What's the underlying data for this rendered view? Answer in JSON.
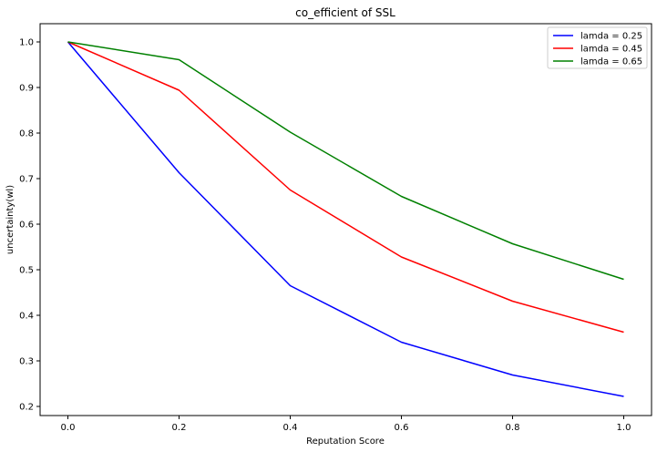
{
  "chart_data": {
    "type": "line",
    "title": "co_efficient of SSL",
    "xlabel": "Reputation Score",
    "ylabel": "uncertainty(wl)",
    "x": [
      0.0,
      0.2,
      0.4,
      0.6,
      0.8,
      1.0
    ],
    "xlim": [
      -0.05,
      1.05
    ],
    "ylim": [
      0.18,
      1.04
    ],
    "xticks": [
      "0.0",
      "0.2",
      "0.4",
      "0.6",
      "0.8",
      "1.0"
    ],
    "yticks": [
      "0.2",
      "0.3",
      "0.4",
      "0.5",
      "0.6",
      "0.7",
      "0.8",
      "0.9",
      "1.0"
    ],
    "grid": false,
    "legend_position": "top-right",
    "series": [
      {
        "name": "lamda = 0.25",
        "color": "#0000ff",
        "values": [
          1.0,
          0.713,
          0.465,
          0.341,
          0.269,
          0.222
        ]
      },
      {
        "name": "lamda = 0.45",
        "color": "#ff0000",
        "values": [
          1.0,
          0.894,
          0.675,
          0.528,
          0.431,
          0.363
        ]
      },
      {
        "name": "lamda = 0.65",
        "color": "#008000",
        "values": [
          1.0,
          0.961,
          0.802,
          0.661,
          0.557,
          0.479
        ]
      }
    ]
  }
}
